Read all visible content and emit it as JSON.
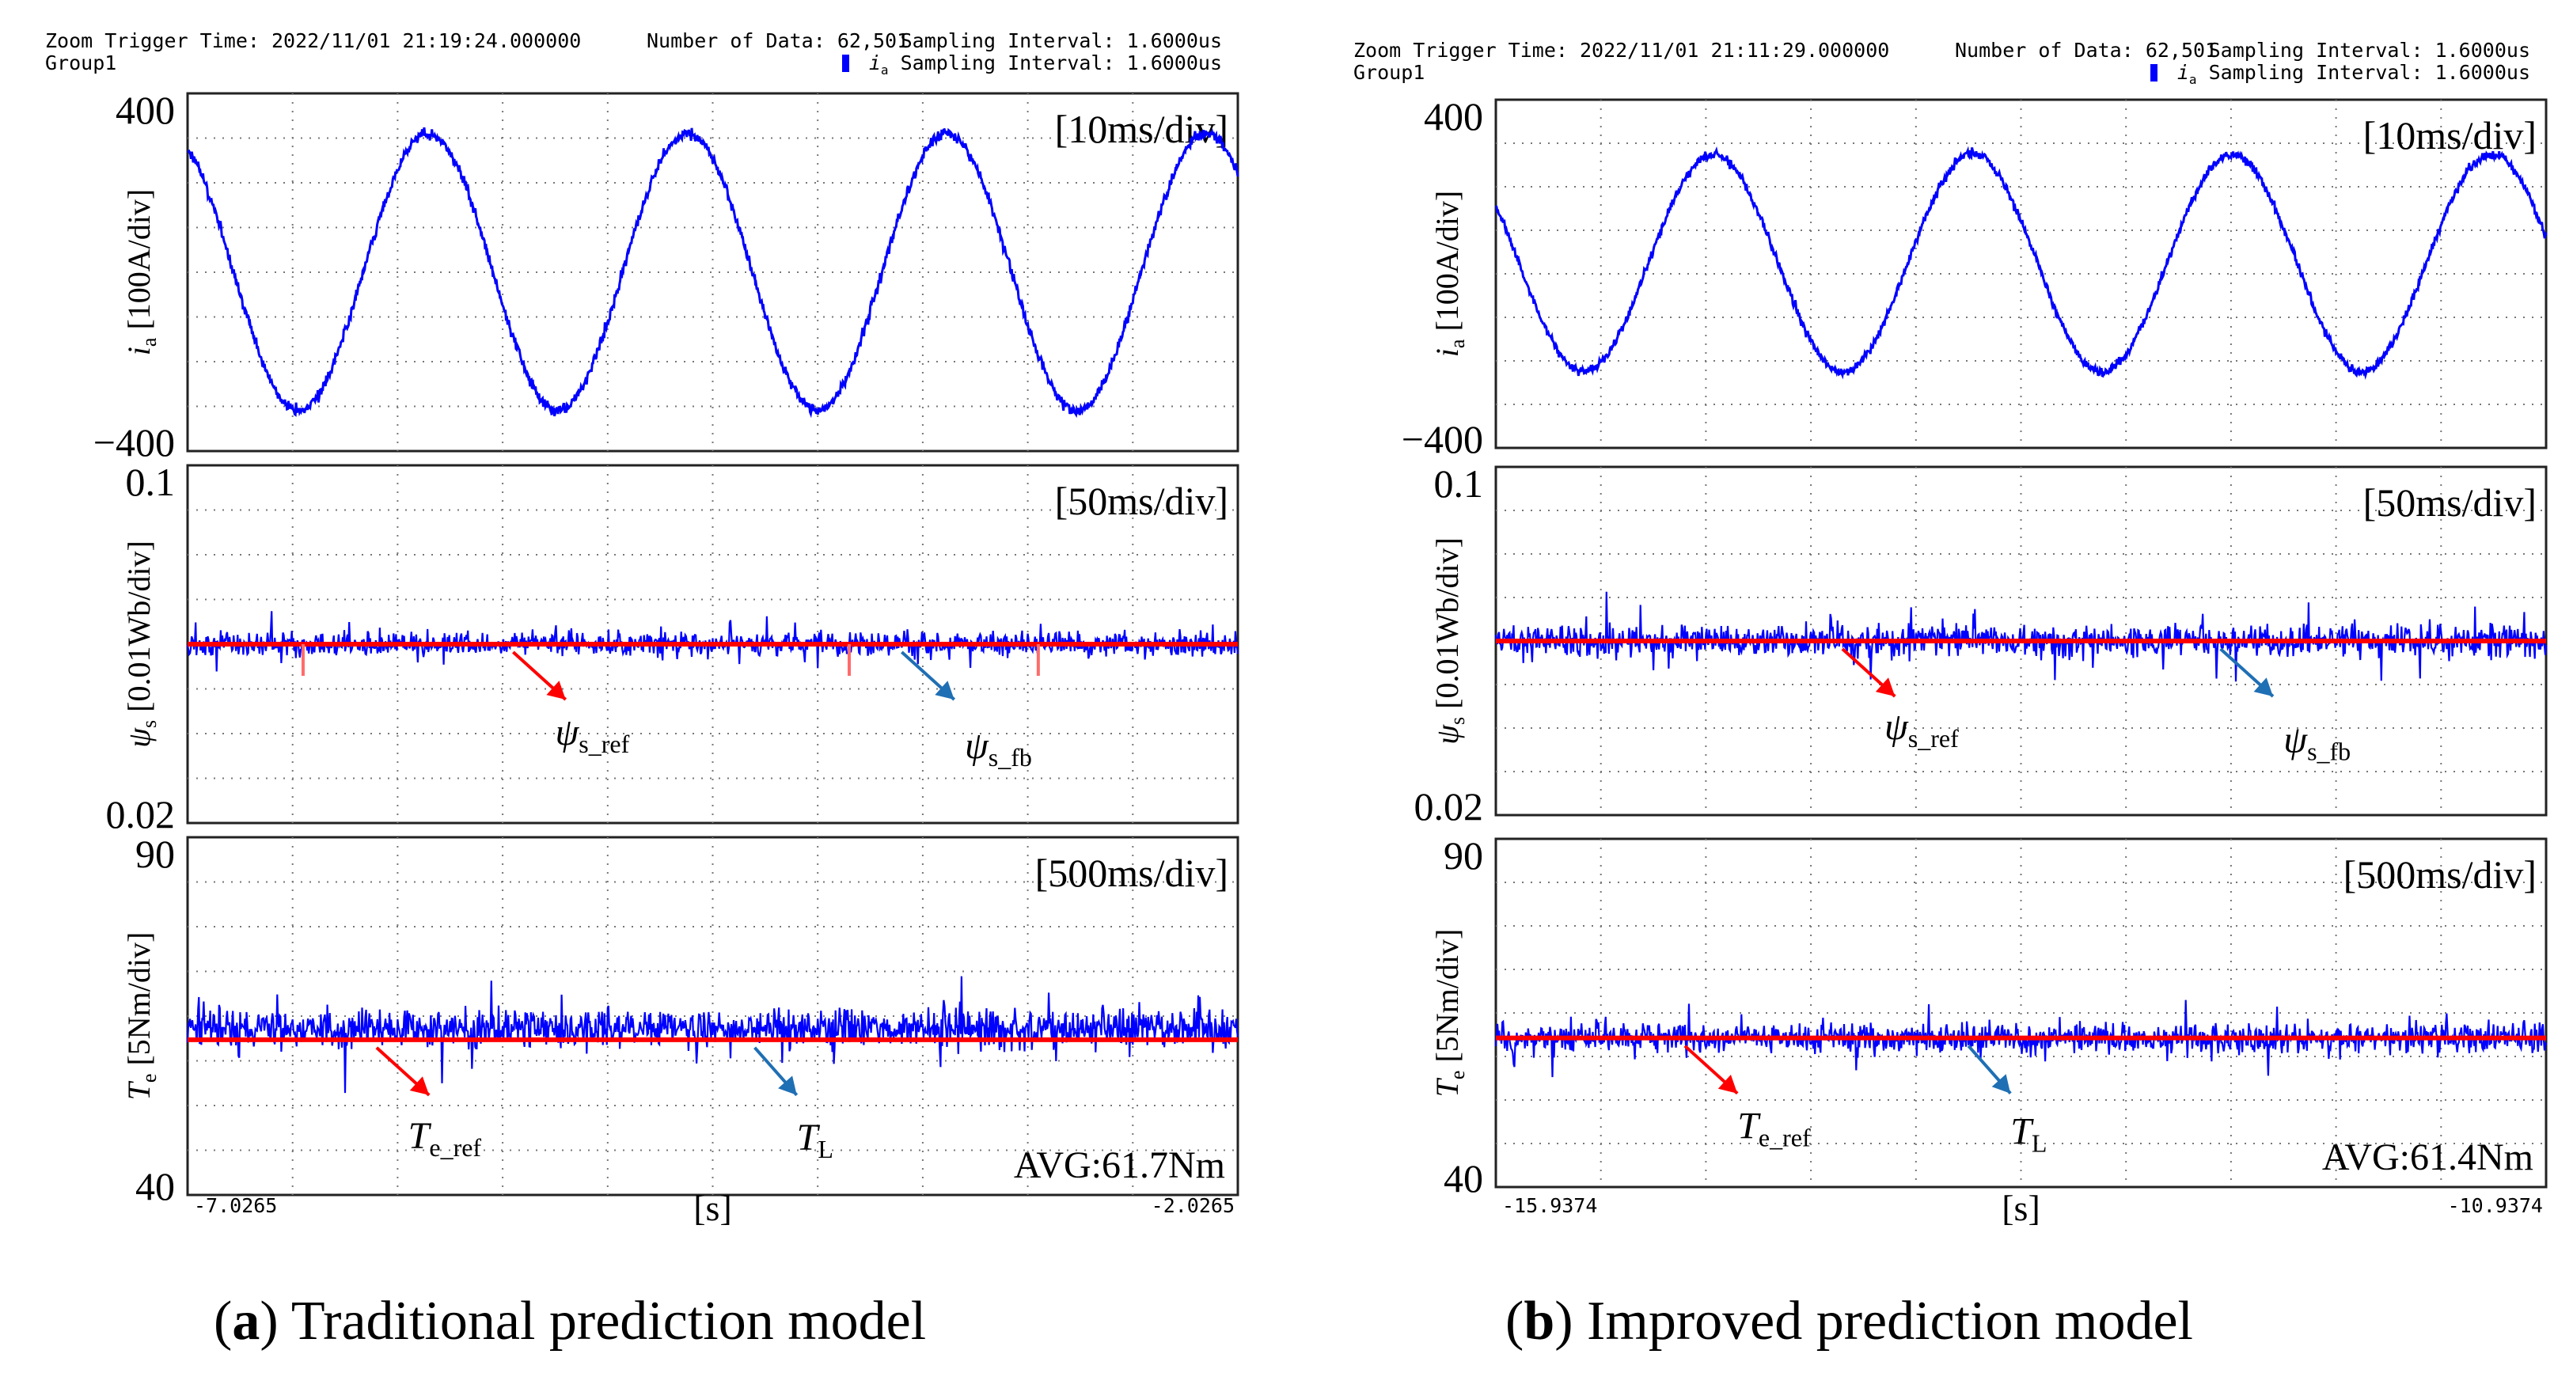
{
  "chart_data": [
    {
      "type": "line",
      "caption_label": "a",
      "caption_text": "Traditional prediction model",
      "header": {
        "zoom_trigger": "Zoom Trigger Time: 2022/11/01 21:19:24.000000",
        "number_of_data": "Number of Data: 62,501",
        "sampling_interval": "Sampling Interval:   1.6000us",
        "group": "Group1",
        "channel_var": "i",
        "channel_sub": "a",
        "channel_interval": " Sampling Interval:   1.6000us"
      },
      "xaxis": {
        "left_tick": "-7.0265",
        "right_tick": "-2.0265",
        "unit_label": "[s]"
      },
      "panels": [
        {
          "name": "current",
          "timebase": "[10ms/div]",
          "ylabel_var": "i",
          "ylabel_sub": "a",
          "ylabel_unit": " [100A/div]",
          "ytick_top": "400",
          "ytick_bottom": "−400",
          "ylim": [
            -400,
            400
          ],
          "trace": {
            "kind": "sine",
            "amplitude": 310,
            "offset": 0,
            "cycles": 4.05,
            "phase_deg": 116,
            "noise": 12
          }
        },
        {
          "name": "flux",
          "timebase": "[50ms/div]",
          "ylabel_var": "ψ",
          "ylabel_sub": "s",
          "ylabel_unit": " [0.01Wb/div]",
          "ytick_top": "0.1",
          "ytick_bottom": "0.02",
          "ylim": [
            0.02,
            0.1
          ],
          "reference_value": 0.06,
          "feedback_mean": 0.06,
          "feedback_ripple": 0.0025,
          "annotations": [
            {
              "var": "ψ",
              "sub": "s_ref",
              "color": "#ff0000",
              "arrow_x0": 0.31,
              "arrow_x1": 0.36,
              "label_x": 0.35,
              "label_y_value": 0.0375
            },
            {
              "var": "ψ",
              "sub": "s_fb",
              "color": "#1f6fb4",
              "arrow_x0": 0.68,
              "arrow_x1": 0.73,
              "label_x": 0.74,
              "label_y_value": 0.0345
            }
          ]
        },
        {
          "name": "torque",
          "timebase": "[500ms/div]",
          "ylabel_var": "T",
          "ylabel_sub": "e",
          "ylabel_unit": " [5Nm/div]",
          "ytick_top": "90",
          "ytick_bottom": "40",
          "ylim": [
            40,
            90
          ],
          "reference_value": 61.7,
          "feedback_mean": 63.2,
          "feedback_ripple": 2.6,
          "avg_label": "AVG:61.7Nm",
          "annotations": [
            {
              "var": "T",
              "sub": "e_ref",
              "color": "#ff0000",
              "arrow_x0": 0.18,
              "arrow_x1": 0.23,
              "label_x": 0.21,
              "label_y_value": 46.5
            },
            {
              "var": "T",
              "sub": "L",
              "color": "#1f6fb4",
              "arrow_x0": 0.54,
              "arrow_x1": 0.58,
              "label_x": 0.58,
              "label_y_value": 46.3
            }
          ]
        }
      ]
    },
    {
      "type": "line",
      "caption_label": "b",
      "caption_text": "Improved prediction model",
      "header": {
        "zoom_trigger": "Zoom Trigger Time: 2022/11/01 21:11:29.000000",
        "number_of_data": "Number of Data: 62,501",
        "sampling_interval": "Sampling Interval:   1.6000us",
        "group": "Group1",
        "channel_var": "i",
        "channel_sub": "a",
        "channel_interval": " Sampling Interval:   1.6000us"
      },
      "xaxis": {
        "left_tick": "-15.9374",
        "right_tick": "-10.9374",
        "unit_label": "[s]"
      },
      "panels": [
        {
          "name": "current",
          "timebase": "[10ms/div]",
          "ylabel_var": "i",
          "ylabel_sub": "a",
          "ylabel_unit": " [100A/div]",
          "ytick_top": "400",
          "ytick_bottom": "−400",
          "ylim": [
            -400,
            400
          ],
          "trace": {
            "kind": "sine",
            "amplitude": 250,
            "offset": 25,
            "cycles": 4.05,
            "phase_deg": 148,
            "noise": 10
          }
        },
        {
          "name": "flux",
          "timebase": "[50ms/div]",
          "ylabel_var": "ψ",
          "ylabel_sub": "s",
          "ylabel_unit": " [0.01Wb/div]",
          "ytick_top": "0.1",
          "ytick_bottom": "0.02",
          "ylim": [
            0.02,
            0.1
          ],
          "reference_value": 0.06,
          "feedback_mean": 0.06,
          "feedback_ripple": 0.0035,
          "annotations": [
            {
              "var": "ψ",
              "sub": "s_ref",
              "color": "#ff0000",
              "arrow_x0": 0.33,
              "arrow_x1": 0.38,
              "label_x": 0.37,
              "label_y_value": 0.0375
            },
            {
              "var": "ψ",
              "sub": "s_fb",
              "color": "#1f6fb4",
              "arrow_x0": 0.69,
              "arrow_x1": 0.74,
              "label_x": 0.75,
              "label_y_value": 0.0345
            }
          ]
        },
        {
          "name": "torque",
          "timebase": "[500ms/div]",
          "ylabel_var": "T",
          "ylabel_sub": "e",
          "ylabel_unit": " [5Nm/div]",
          "ytick_top": "90",
          "ytick_bottom": "40",
          "ylim": [
            40,
            90
          ],
          "reference_value": 61.4,
          "feedback_mean": 61.4,
          "feedback_ripple": 2.0,
          "avg_label": "AVG:61.4Nm",
          "annotations": [
            {
              "var": "T",
              "sub": "e_ref",
              "color": "#ff0000",
              "arrow_x0": 0.18,
              "arrow_x1": 0.23,
              "label_x": 0.23,
              "label_y_value": 47.0
            },
            {
              "var": "T",
              "sub": "L",
              "color": "#1f6fb4",
              "arrow_x0": 0.45,
              "arrow_x1": 0.49,
              "label_x": 0.49,
              "label_y_value": 46.2
            }
          ]
        }
      ]
    }
  ]
}
